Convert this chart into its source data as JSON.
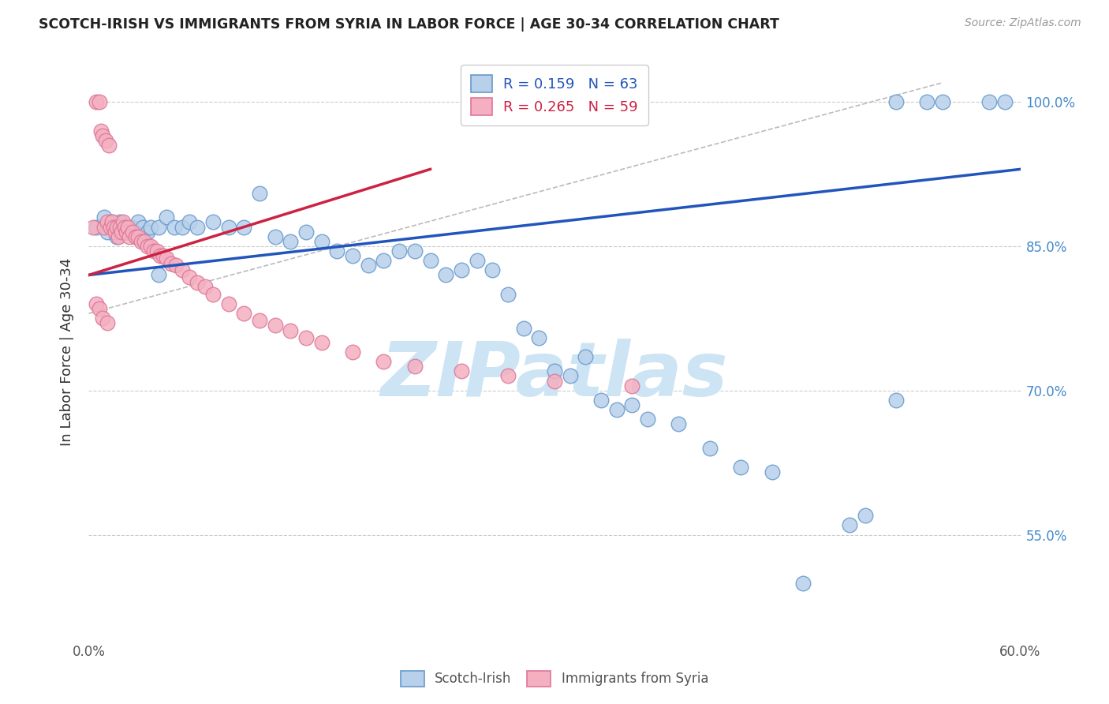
{
  "title": "SCOTCH-IRISH VS IMMIGRANTS FROM SYRIA IN LABOR FORCE | AGE 30-34 CORRELATION CHART",
  "source": "Source: ZipAtlas.com",
  "ylabel": "In Labor Force | Age 30-34",
  "xlim": [
    0.0,
    0.6
  ],
  "ylim": [
    0.44,
    1.04
  ],
  "xtick_positions": [
    0.0,
    0.1,
    0.2,
    0.3,
    0.4,
    0.5,
    0.6
  ],
  "xtick_labels": [
    "0.0%",
    "",
    "",
    "",
    "",
    "",
    "60.0%"
  ],
  "ytick_positions": [
    0.55,
    0.7,
    0.85,
    1.0
  ],
  "ytick_labels": [
    "55.0%",
    "70.0%",
    "85.0%",
    "100.0%"
  ],
  "blue_R": 0.159,
  "blue_N": 63,
  "pink_R": 0.265,
  "pink_N": 59,
  "blue_face": "#b8d0ea",
  "blue_edge": "#6699cc",
  "pink_face": "#f4b0c0",
  "pink_edge": "#dd7799",
  "blue_line": "#2255bb",
  "pink_line": "#cc2244",
  "ref_line": "#bbbbbb",
  "watermark": "ZIPatlas",
  "watermark_color": "#cce4f4",
  "grid_color": "#cccccc",
  "blue_x": [
    0.005,
    0.01,
    0.012,
    0.015,
    0.018,
    0.02,
    0.022,
    0.025,
    0.028,
    0.03,
    0.032,
    0.035,
    0.038,
    0.04,
    0.045,
    0.05,
    0.055,
    0.06,
    0.065,
    0.07,
    0.08,
    0.09,
    0.1,
    0.11,
    0.12,
    0.13,
    0.14,
    0.15,
    0.16,
    0.17,
    0.18,
    0.19,
    0.2,
    0.21,
    0.22,
    0.23,
    0.24,
    0.25,
    0.26,
    0.27,
    0.28,
    0.29,
    0.3,
    0.31,
    0.32,
    0.33,
    0.34,
    0.35,
    0.36,
    0.38,
    0.4,
    0.42,
    0.44,
    0.46,
    0.5,
    0.52,
    0.54,
    0.55,
    0.58,
    0.59,
    0.52,
    0.49,
    0.045
  ],
  "blue_y": [
    0.87,
    0.88,
    0.865,
    0.875,
    0.86,
    0.875,
    0.87,
    0.865,
    0.87,
    0.86,
    0.875,
    0.87,
    0.865,
    0.87,
    0.87,
    0.88,
    0.87,
    0.87,
    0.875,
    0.87,
    0.875,
    0.87,
    0.87,
    0.905,
    0.86,
    0.855,
    0.865,
    0.855,
    0.845,
    0.84,
    0.83,
    0.835,
    0.845,
    0.845,
    0.835,
    0.82,
    0.825,
    0.835,
    0.825,
    0.8,
    0.765,
    0.755,
    0.72,
    0.715,
    0.735,
    0.69,
    0.68,
    0.685,
    0.67,
    0.665,
    0.64,
    0.62,
    0.615,
    0.5,
    0.57,
    1.0,
    1.0,
    1.0,
    1.0,
    1.0,
    0.69,
    0.56,
    0.82
  ],
  "pink_x": [
    0.003,
    0.005,
    0.007,
    0.008,
    0.009,
    0.01,
    0.011,
    0.012,
    0.013,
    0.014,
    0.015,
    0.016,
    0.017,
    0.018,
    0.019,
    0.02,
    0.021,
    0.022,
    0.023,
    0.024,
    0.025,
    0.026,
    0.028,
    0.03,
    0.032,
    0.034,
    0.036,
    0.038,
    0.04,
    0.042,
    0.044,
    0.046,
    0.048,
    0.05,
    0.053,
    0.056,
    0.06,
    0.065,
    0.07,
    0.075,
    0.08,
    0.09,
    0.1,
    0.11,
    0.12,
    0.13,
    0.14,
    0.15,
    0.17,
    0.19,
    0.21,
    0.24,
    0.27,
    0.3,
    0.35,
    0.005,
    0.007,
    0.009,
    0.012
  ],
  "pink_y": [
    0.87,
    1.0,
    1.0,
    0.97,
    0.965,
    0.87,
    0.96,
    0.875,
    0.955,
    0.87,
    0.875,
    0.87,
    0.865,
    0.87,
    0.86,
    0.87,
    0.865,
    0.875,
    0.87,
    0.865,
    0.87,
    0.86,
    0.865,
    0.86,
    0.86,
    0.855,
    0.855,
    0.85,
    0.85,
    0.845,
    0.845,
    0.84,
    0.84,
    0.838,
    0.832,
    0.83,
    0.825,
    0.818,
    0.812,
    0.808,
    0.8,
    0.79,
    0.78,
    0.773,
    0.768,
    0.762,
    0.755,
    0.75,
    0.74,
    0.73,
    0.725,
    0.72,
    0.715,
    0.71,
    0.705,
    0.79,
    0.785,
    0.775,
    0.77
  ]
}
